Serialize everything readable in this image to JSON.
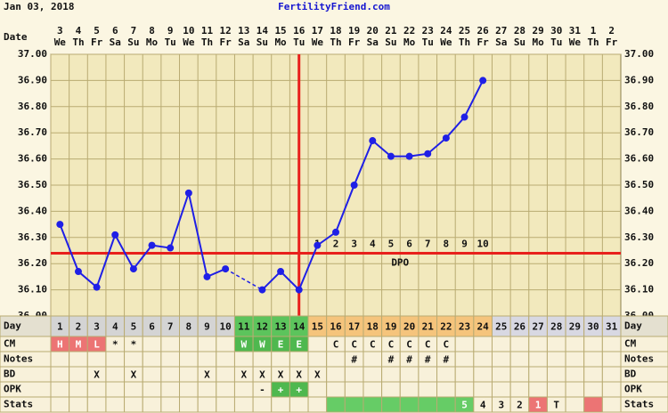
{
  "header": {
    "date": "Jan 03, 2018",
    "site": "FertilityFriend.com"
  },
  "chart_data": {
    "type": "line",
    "date_label": "Date",
    "dates": [
      3,
      4,
      5,
      6,
      7,
      8,
      9,
      10,
      11,
      12,
      13,
      14,
      15,
      16,
      17,
      18,
      19,
      20,
      21,
      22,
      23,
      24,
      25,
      26,
      27,
      28,
      29,
      30,
      31,
      1,
      2
    ],
    "weekdays": [
      "We",
      "Th",
      "Fr",
      "Sa",
      "Su",
      "Mo",
      "Tu",
      "We",
      "Th",
      "Fr",
      "Sa",
      "Su",
      "Mo",
      "Tu",
      "We",
      "Th",
      "Fr",
      "Sa",
      "Su",
      "Mo",
      "Tu",
      "We",
      "Th",
      "Fr",
      "Sa",
      "Su",
      "Mo",
      "Tu",
      "We",
      "Th",
      "Fr"
    ],
    "values": [
      36.35,
      36.17,
      36.11,
      36.31,
      36.18,
      36.27,
      36.26,
      36.47,
      36.15,
      36.18,
      null,
      36.1,
      36.17,
      36.1,
      36.27,
      36.32,
      36.5,
      36.67,
      36.61,
      36.61,
      36.62,
      36.68,
      36.76,
      36.9,
      null,
      null,
      null,
      null,
      null,
      null,
      null
    ],
    "color": "#1f1fe6",
    "ylim": [
      36.0,
      37.0
    ],
    "yticks": [
      {
        "value": 36.0,
        "label": "36.00"
      },
      {
        "value": 36.1,
        "label": "36.10"
      },
      {
        "value": 36.2,
        "label": "36.20"
      },
      {
        "value": 36.3,
        "label": "36.30"
      },
      {
        "value": 36.4,
        "label": "36.40"
      },
      {
        "value": 36.5,
        "label": "36.50"
      },
      {
        "value": 36.6,
        "label": "36.60"
      },
      {
        "value": 36.7,
        "label": "36.70"
      },
      {
        "value": 36.8,
        "label": "36.80"
      },
      {
        "value": 36.9,
        "label": "36.90"
      },
      {
        "value": 37.0,
        "label": "37.00"
      }
    ],
    "grid": true,
    "coverline": 36.24,
    "marker_color": "#e8201c",
    "ovulation_day": 14,
    "dpo": [
      1,
      2,
      3,
      4,
      5,
      6,
      7,
      8,
      9,
      10
    ],
    "dpo_label": "DPO",
    "rows": [
      {
        "label": "Day",
        "cells": [
          1,
          2,
          3,
          4,
          5,
          6,
          7,
          8,
          9,
          10,
          11,
          12,
          13,
          14,
          15,
          16,
          17,
          18,
          19,
          20,
          21,
          22,
          23,
          24,
          25,
          26,
          27,
          28,
          29,
          30,
          31
        ],
        "colors": [
          "#d4d4d4",
          "#d4d4d4",
          "#d4d4d4",
          "#d4d4d4",
          "#d4d4d4",
          "#d4d4d4",
          "#d4d4d4",
          "#d4d4d4",
          "#d4d4d4",
          "#d4d4d4",
          "#5cc45c",
          "#5cc45c",
          "#5cc45c",
          "#5cc45c",
          "#f5c47c",
          "#f5c47c",
          "#f5c47c",
          "#f5c47c",
          "#f5c47c",
          "#f5c47c",
          "#f5c47c",
          "#f5c47c",
          "#f5c47c",
          "#f5c47c",
          "#d8d8e2",
          "#d8d8e2",
          "#d8d8e2",
          "#d8d8e2",
          "#d8d8e2",
          "#d8d8e2",
          "#d8d8e2"
        ]
      },
      {
        "label": "CM",
        "cells": [
          "H",
          "M",
          "L",
          "*",
          "*",
          null,
          null,
          null,
          null,
          null,
          "W",
          "W",
          "E",
          "E",
          null,
          "C",
          "C",
          "C",
          "C",
          "C",
          "C",
          "C",
          null,
          null,
          null,
          null,
          null,
          null,
          null,
          null,
          null
        ],
        "colors": [
          "#ec7474",
          "#ec7474",
          "#ec7474",
          null,
          null,
          null,
          null,
          null,
          null,
          null,
          "#4fb84f",
          "#4fb84f",
          "#4fb84f",
          "#4fb84f",
          null,
          null,
          null,
          null,
          null,
          null,
          null,
          null,
          null,
          null,
          null,
          null,
          null,
          null,
          null,
          null,
          null
        ]
      },
      {
        "label": "Notes",
        "cells": [
          null,
          null,
          null,
          null,
          null,
          null,
          null,
          null,
          null,
          null,
          null,
          null,
          null,
          null,
          null,
          null,
          "#",
          null,
          "#",
          "#",
          "#",
          "#",
          null,
          null,
          null,
          null,
          null,
          null,
          null,
          null,
          null
        ]
      },
      {
        "label": "BD",
        "cells": [
          null,
          null,
          "X",
          null,
          "X",
          null,
          null,
          null,
          "X",
          null,
          "X",
          "X",
          "X",
          "X",
          "X",
          null,
          null,
          null,
          null,
          null,
          null,
          null,
          null,
          null,
          null,
          null,
          null,
          null,
          null,
          null,
          null
        ]
      },
      {
        "label": "OPK",
        "cells": [
          null,
          null,
          null,
          null,
          null,
          null,
          null,
          null,
          null,
          null,
          null,
          "-",
          "+",
          "+",
          null,
          null,
          null,
          null,
          null,
          null,
          null,
          null,
          null,
          null,
          null,
          null,
          null,
          null,
          null,
          null,
          null
        ],
        "colors": [
          null,
          null,
          null,
          null,
          null,
          null,
          null,
          null,
          null,
          null,
          null,
          null,
          "#4fb84f",
          "#4fb84f",
          null,
          null,
          null,
          null,
          null,
          null,
          null,
          null,
          null,
          null,
          null,
          null,
          null,
          null,
          null,
          null,
          null
        ]
      },
      {
        "label": "Stats",
        "cells": [
          null,
          null,
          null,
          null,
          null,
          null,
          null,
          null,
          null,
          null,
          null,
          null,
          null,
          null,
          null,
          null,
          null,
          null,
          null,
          null,
          null,
          null,
          "5",
          "4",
          "3",
          "2",
          "1",
          "T",
          null,
          null,
          null
        ],
        "colors": [
          null,
          null,
          null,
          null,
          null,
          null,
          null,
          null,
          null,
          null,
          null,
          null,
          null,
          null,
          null,
          "#66cc66",
          "#66cc66",
          "#66cc66",
          "#66cc66",
          "#66cc66",
          "#66cc66",
          "#66cc66",
          "#66cc66",
          null,
          null,
          null,
          "#ec7474",
          null,
          null,
          "#ec7474",
          null
        ]
      }
    ]
  }
}
